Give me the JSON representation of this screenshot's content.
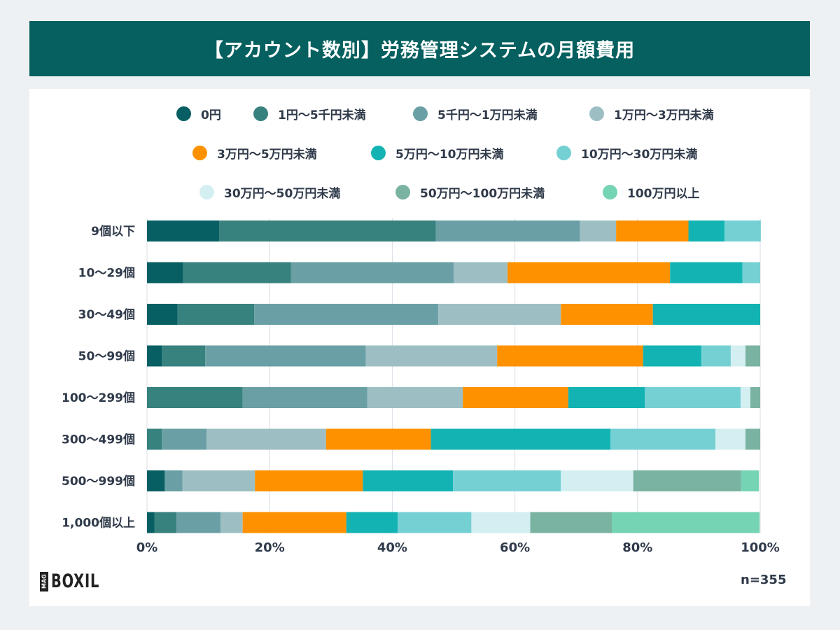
{
  "title": "【アカウント数別】労務管理システムの月額費用",
  "logo": {
    "tag": "MAG",
    "name": "BOXIL"
  },
  "sample_size": "n=355",
  "chart_data": {
    "type": "bar",
    "orientation": "horizontal",
    "stacked": true,
    "title": "【アカウント数別】労務管理システムの月額費用",
    "xlim": [
      0,
      100
    ],
    "x_ticks": [
      "0%",
      "20%",
      "40%",
      "60%",
      "80%",
      "100%"
    ],
    "grid": true,
    "legend_position": "top",
    "categories": [
      "9個以下",
      "10〜29個",
      "30〜49個",
      "50〜99個",
      "100〜299個",
      "300〜499個",
      "500〜999個",
      "1,000個以上"
    ],
    "series": [
      {
        "name": "0円",
        "color": "#075f63",
        "values": [
          11.8,
          5.9,
          5.0,
          2.4,
          0,
          0,
          2.9,
          1.2
        ]
      },
      {
        "name": "1円〜5千円未満",
        "color": "#37817f",
        "values": [
          35.3,
          17.6,
          12.5,
          7.1,
          15.6,
          2.4,
          0,
          3.6
        ]
      },
      {
        "name": "5千円〜1万円未満",
        "color": "#6aa0a5",
        "values": [
          23.5,
          26.5,
          30.0,
          26.2,
          20.3,
          7.3,
          2.9,
          7.2
        ]
      },
      {
        "name": "1万円〜3万円未満",
        "color": "#9dbfc4",
        "values": [
          5.9,
          8.8,
          20.0,
          21.4,
          15.6,
          19.5,
          11.8,
          3.6
        ]
      },
      {
        "name": "3万円〜5万円未満",
        "color": "#fd9100",
        "values": [
          11.8,
          26.5,
          15.0,
          23.8,
          17.2,
          17.1,
          17.6,
          16.9
        ]
      },
      {
        "name": "5万円〜10万円未満",
        "color": "#14b3b3",
        "values": [
          5.9,
          11.8,
          17.5,
          9.5,
          12.5,
          29.3,
          14.7,
          8.4
        ]
      },
      {
        "name": "10万円〜30万円未満",
        "color": "#75d0d4",
        "values": [
          5.9,
          2.9,
          0,
          4.8,
          15.6,
          17.1,
          17.6,
          12.0
        ]
      },
      {
        "name": "30万円〜50万円未満",
        "color": "#d3eff1",
        "values": [
          0,
          0,
          0,
          2.4,
          1.6,
          4.9,
          11.8,
          9.6
        ]
      },
      {
        "name": "50万円〜100万円未満",
        "color": "#7bb3a3",
        "values": [
          0,
          0,
          0,
          2.4,
          1.6,
          2.4,
          17.6,
          13.3
        ]
      },
      {
        "name": "100万円以上",
        "color": "#75d4b3",
        "values": [
          0,
          0,
          0,
          0,
          0,
          0,
          2.9,
          24.1
        ]
      }
    ]
  }
}
